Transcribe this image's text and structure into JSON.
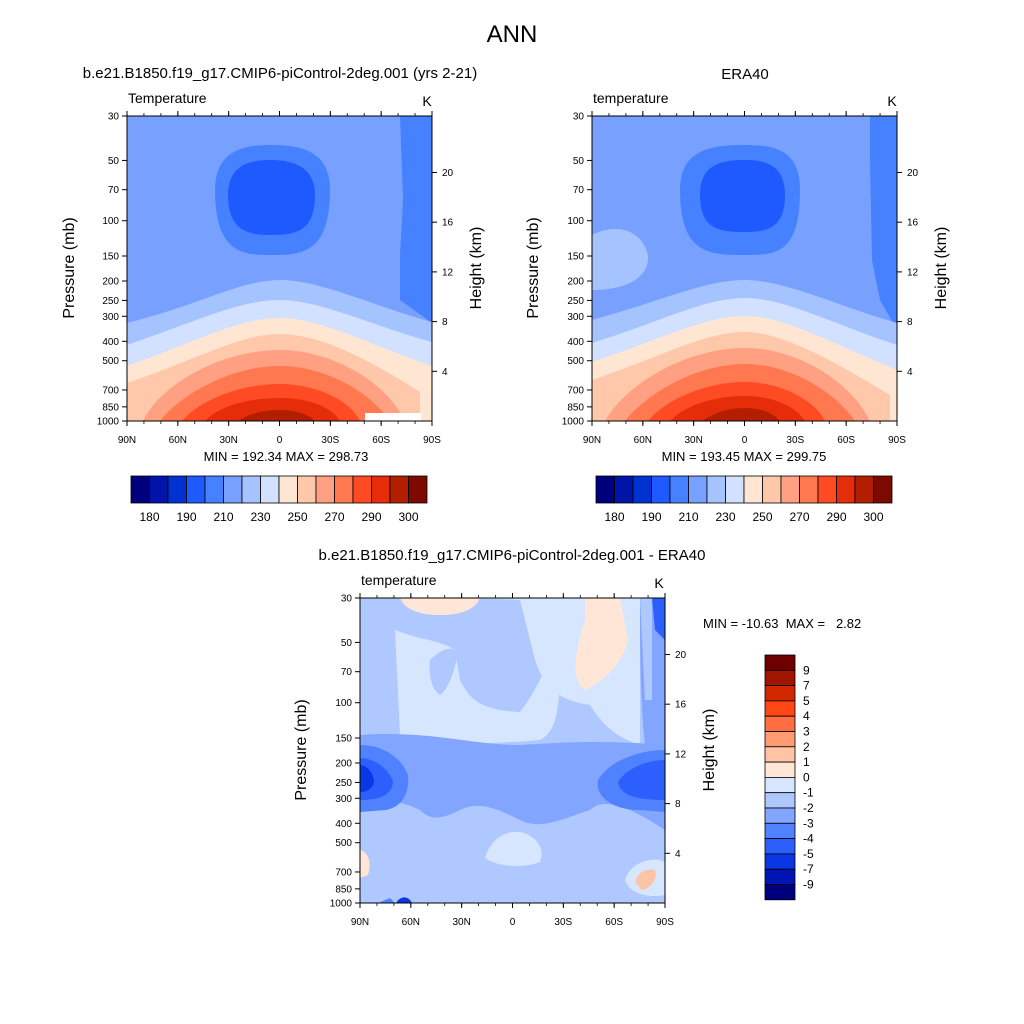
{
  "page_title": "ANN",
  "colors": {
    "abs_scale": [
      "#00007f",
      "#0014aa",
      "#0032d2",
      "#1e5aff",
      "#4682ff",
      "#78a0ff",
      "#a5c3ff",
      "#d2e1ff",
      "#ffe6d2",
      "#ffc8aa",
      "#ffa082",
      "#ff7850",
      "#ff4b23",
      "#e62d0a",
      "#b41e00",
      "#7d0a00"
    ],
    "diff_scale": [
      "#00007f",
      "#0014b4",
      "#0a37e6",
      "#2d5fff",
      "#5082ff",
      "#82a5ff",
      "#afc8ff",
      "#d7e6ff",
      "#ffe6d7",
      "#ffc3a5",
      "#ff9b73",
      "#ff6e41",
      "#ff4614",
      "#d22800",
      "#a01400",
      "#6e0000"
    ]
  },
  "chart_data": [
    {
      "type": "heatmap",
      "panel": "model",
      "title": "b.e21.B1850.f19_g17.CMIP6-piControl-2deg.001 (yrs 2-21)",
      "variable": "Temperature",
      "units": "K",
      "xlabel": "",
      "ylabel": "Pressure (mb)",
      "ylabel_right": "Height (km)",
      "x_ticks": [
        "90N",
        "60N",
        "30N",
        "0",
        "30S",
        "60S",
        "90S"
      ],
      "y_ticks": [
        30,
        50,
        70,
        100,
        150,
        200,
        250,
        300,
        400,
        500,
        700,
        850,
        1000
      ],
      "y_right_ticks": [
        20,
        16,
        12,
        8,
        4
      ],
      "y_scale": "log",
      "ylim": [
        1000,
        30
      ],
      "xlim": [
        90,
        -90
      ],
      "min_max_text": "MIN = 192.34  MAX = 298.73",
      "colorbar_labels": [
        "180",
        "190",
        "210",
        "230",
        "250",
        "270",
        "290",
        "300"
      ],
      "grid": false
    },
    {
      "type": "heatmap",
      "panel": "obs",
      "title": "ERA40",
      "variable": "temperature",
      "units": "K",
      "xlabel": "",
      "ylabel": "Pressure (mb)",
      "ylabel_right": "Height (km)",
      "x_ticks": [
        "90N",
        "60N",
        "30N",
        "0",
        "30S",
        "60S",
        "90S"
      ],
      "y_ticks": [
        30,
        50,
        70,
        100,
        150,
        200,
        250,
        300,
        400,
        500,
        700,
        850,
        1000
      ],
      "y_right_ticks": [
        20,
        16,
        12,
        8,
        4
      ],
      "y_scale": "log",
      "ylim": [
        1000,
        30
      ],
      "xlim": [
        90,
        -90
      ],
      "min_max_text": "MIN = 193.45  MAX = 299.75",
      "colorbar_labels": [
        "180",
        "190",
        "210",
        "230",
        "250",
        "270",
        "290",
        "300"
      ],
      "grid": false
    },
    {
      "type": "heatmap",
      "panel": "diff",
      "title": "b.e21.B1850.f19_g17.CMIP6-piControl-2deg.001 - ERA40",
      "variable": "temperature",
      "units": "K",
      "xlabel": "",
      "ylabel": "Pressure (mb)",
      "ylabel_right": "Height (km)",
      "x_ticks": [
        "90N",
        "60N",
        "30N",
        "0",
        "30S",
        "60S",
        "90S"
      ],
      "y_ticks": [
        30,
        50,
        70,
        100,
        150,
        200,
        250,
        300,
        400,
        500,
        700,
        850,
        1000
      ],
      "y_right_ticks": [
        20,
        16,
        12,
        8,
        4
      ],
      "y_scale": "log",
      "ylim": [
        1000,
        30
      ],
      "xlim": [
        90,
        -90
      ],
      "min_max_text": "MIN = -10.63  MAX =   2.82",
      "colorbar_labels": [
        "9",
        "7",
        "5",
        "4",
        "3",
        "2",
        "1",
        "0",
        "-1",
        "-2",
        "-3",
        "-4",
        "-5",
        "-7",
        "-9"
      ],
      "grid": false
    }
  ]
}
